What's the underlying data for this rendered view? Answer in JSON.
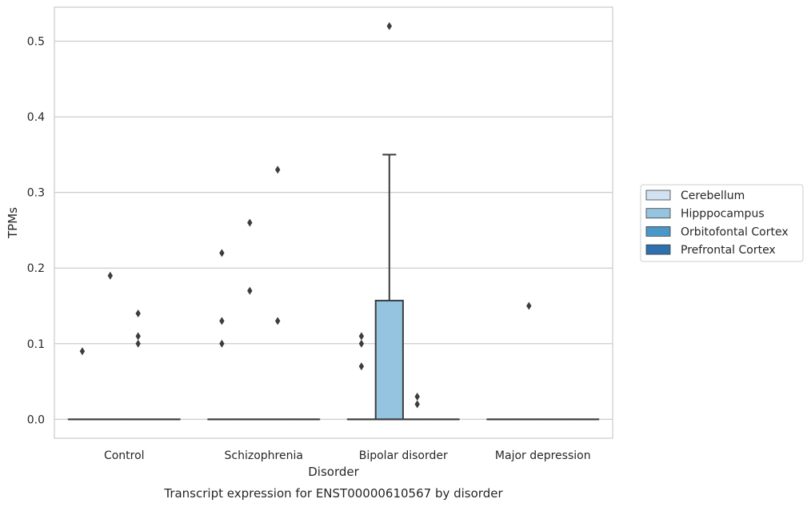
{
  "chart_data": {
    "type": "box",
    "title": "Transcript expression for ENST00000610567 by disorder",
    "xlabel": "Disorder",
    "ylabel": "TPMs",
    "ylim": [
      -0.025,
      0.545
    ],
    "yticks": [
      "0.0",
      "0.1",
      "0.2",
      "0.3",
      "0.4",
      "0.5"
    ],
    "ytick_values": [
      0,
      0.1,
      0.2,
      0.3,
      0.4,
      0.5
    ],
    "grid": true,
    "legend_position": "right",
    "categories": [
      "Control",
      "Schizophrenia",
      "Bipolar disorder",
      "Major depression"
    ],
    "series": [
      {
        "name": "Cerebellum",
        "color": "#d0e1f2",
        "boxes": [
          {
            "q1": 0,
            "median": 0,
            "q3": 0,
            "whisker_low": 0,
            "whisker_high": 0,
            "outliers": [
              0.09
            ]
          },
          {
            "q1": 0,
            "median": 0,
            "q3": 0,
            "whisker_low": 0,
            "whisker_high": 0,
            "outliers": [
              0.1,
              0.13,
              0.22
            ]
          },
          {
            "q1": 0,
            "median": 0,
            "q3": 0,
            "whisker_low": 0,
            "whisker_high": 0,
            "outliers": [
              0.07,
              0.1,
              0.11
            ]
          },
          {
            "q1": 0,
            "median": 0,
            "q3": 0,
            "whisker_low": 0,
            "whisker_high": 0,
            "outliers": []
          }
        ]
      },
      {
        "name": "Hipppocampus",
        "color": "#94c4df",
        "boxes": [
          {
            "q1": 0,
            "median": 0,
            "q3": 0,
            "whisker_low": 0,
            "whisker_high": 0,
            "outliers": [
              0.19
            ]
          },
          {
            "q1": 0,
            "median": 0,
            "q3": 0,
            "whisker_low": 0,
            "whisker_high": 0,
            "outliers": [
              0.17,
              0.26
            ]
          },
          {
            "q1": 0,
            "median": 0,
            "q3": 0.157,
            "whisker_low": 0,
            "whisker_high": 0.35,
            "outliers": [
              0.52
            ]
          },
          {
            "q1": 0,
            "median": 0,
            "q3": 0,
            "whisker_low": 0,
            "whisker_high": 0,
            "outliers": [
              0.15
            ]
          }
        ]
      },
      {
        "name": "Orbitofontal Cortex",
        "color": "#4a98c9",
        "boxes": [
          {
            "q1": 0,
            "median": 0,
            "q3": 0,
            "whisker_low": 0,
            "whisker_high": 0,
            "outliers": [
              0.1,
              0.11,
              0.14
            ]
          },
          {
            "q1": 0,
            "median": 0,
            "q3": 0,
            "whisker_low": 0,
            "whisker_high": 0,
            "outliers": [
              0.13,
              0.33
            ]
          },
          {
            "q1": 0,
            "median": 0,
            "q3": 0,
            "whisker_low": 0,
            "whisker_high": 0,
            "outliers": [
              0.02,
              0.03
            ]
          },
          {
            "q1": 0,
            "median": 0,
            "q3": 0,
            "whisker_low": 0,
            "whisker_high": 0,
            "outliers": []
          }
        ]
      },
      {
        "name": "Prefrontal Cortex",
        "color": "#2e6fad",
        "boxes": [
          {
            "q1": 0,
            "median": 0,
            "q3": 0,
            "whisker_low": 0,
            "whisker_high": 0,
            "outliers": []
          },
          {
            "q1": 0,
            "median": 0,
            "q3": 0,
            "whisker_low": 0,
            "whisker_high": 0,
            "outliers": []
          },
          {
            "q1": 0,
            "median": 0,
            "q3": 0,
            "whisker_low": 0,
            "whisker_high": 0,
            "outliers": []
          },
          {
            "q1": 0,
            "median": 0,
            "q3": 0,
            "whisker_low": 0,
            "whisker_high": 0,
            "outliers": []
          }
        ]
      }
    ]
  }
}
